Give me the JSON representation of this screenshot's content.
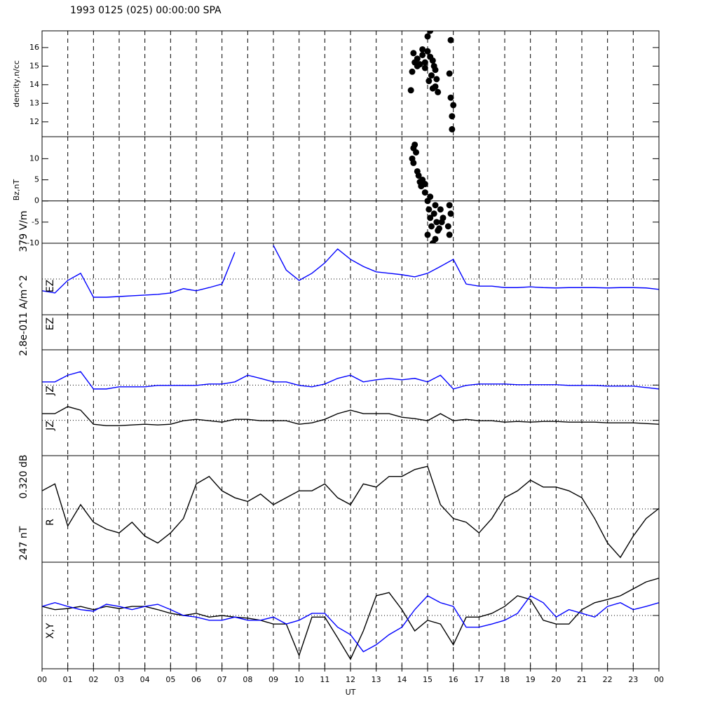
{
  "title": "1993 0125 (025) 00:00:00 SPA",
  "xaxis": {
    "label": "UT",
    "xlim": [
      0,
      24
    ],
    "xticks": [
      {
        "value": 0,
        "label": "00"
      },
      {
        "value": 1,
        "label": "01"
      },
      {
        "value": 2,
        "label": "02"
      },
      {
        "value": 3,
        "label": "03"
      },
      {
        "value": 4,
        "label": "04"
      },
      {
        "value": 5,
        "label": "05"
      },
      {
        "value": 6,
        "label": "06"
      },
      {
        "value": 7,
        "label": "07"
      },
      {
        "value": 8,
        "label": "08"
      },
      {
        "value": 9,
        "label": "09"
      },
      10,
      11,
      12,
      13,
      14,
      15,
      16,
      17,
      18,
      19,
      20,
      21,
      22,
      23,
      {
        "value": 24,
        "label": "00"
      }
    ]
  },
  "chart_data": [
    {
      "type": "scatter",
      "ylabel": "dencity,n/cc",
      "ylim": [
        11.2,
        16.9
      ],
      "yticks": [
        12,
        13,
        14,
        15,
        16
      ],
      "color": "#000000",
      "x": [
        14.5,
        14.4,
        14.35,
        14.6,
        14.7,
        14.8,
        14.9,
        15.0,
        15.1,
        15.0,
        15.05,
        15.15,
        15.2,
        15.25,
        15.3,
        15.35,
        15.4,
        14.8,
        15.1,
        15.9,
        15.85,
        15.9,
        16.0,
        15.95,
        15.95,
        14.6,
        14.9,
        15.2,
        15.3,
        14.45
      ],
      "values": [
        15.2,
        14.7,
        13.7,
        15.4,
        15.1,
        15.6,
        15.2,
        16.6,
        16.9,
        15.8,
        14.2,
        14.5,
        13.8,
        15.0,
        14.8,
        14.3,
        13.6,
        15.9,
        15.5,
        16.4,
        14.6,
        13.3,
        12.9,
        12.3,
        11.6,
        15.0,
        14.9,
        15.3,
        13.9,
        15.7
      ]
    },
    {
      "type": "scatter",
      "ylabel": "Bz,nT",
      "ylim": [
        -10,
        15.2
      ],
      "yticks": [
        -10,
        -5,
        0,
        5,
        10
      ],
      "zero_line": true,
      "color": "#000000",
      "x": [
        14.45,
        14.5,
        14.55,
        14.4,
        14.45,
        14.6,
        14.65,
        14.7,
        14.75,
        14.8,
        14.9,
        15.0,
        15.05,
        15.1,
        15.15,
        15.0,
        15.2,
        15.25,
        15.3,
        15.35,
        15.4,
        15.5,
        15.55,
        15.6,
        15.8,
        15.85,
        15.9,
        15.85,
        15.1,
        14.9,
        15.3,
        15.45
      ],
      "values": [
        12.5,
        13.3,
        11.5,
        10,
        9,
        7,
        6,
        4.5,
        3.5,
        5,
        2,
        0,
        -2,
        -4,
        -6,
        -8,
        -10,
        -3,
        -1,
        -5,
        -7,
        -2,
        -5,
        -4,
        -6,
        -8,
        -3,
        -1,
        1,
        4,
        -9,
        -6.5
      ]
    },
    {
      "type": "line",
      "scale_label": "379 V/m",
      "ylim": [
        -1,
        1
      ],
      "ref_lines": [
        0
      ],
      "x": [
        0,
        0.5,
        1,
        1.5,
        2,
        2.5,
        3,
        3.5,
        4,
        4.5,
        5,
        5.5,
        6,
        6.5,
        7,
        7.5,
        8,
        8.5,
        9,
        9.5,
        10,
        10.5,
        11,
        11.5,
        12,
        12.5,
        13,
        13.5,
        14,
        14.5,
        15,
        15.5,
        16,
        16.5,
        17,
        17.5,
        18,
        18.5,
        19,
        19.5,
        20,
        20.5,
        21,
        21.5,
        22,
        22.5,
        23,
        23.5,
        24
      ],
      "series": [
        {
          "name": "EZ",
          "color": "#0000ff",
          "values": [
            -0.33,
            -0.39,
            -0.04,
            0.16,
            -0.51,
            -0.51,
            -0.49,
            -0.47,
            -0.45,
            -0.43,
            -0.39,
            -0.27,
            -0.33,
            -0.24,
            -0.14,
            0.75,
            null,
            null,
            0.94,
            0.25,
            -0.04,
            0.16,
            0.45,
            0.84,
            0.55,
            0.35,
            0.2,
            0.16,
            0.12,
            0.06,
            0.16,
            0.35,
            0.55,
            -0.14,
            -0.2,
            -0.2,
            -0.24,
            -0.24,
            -0.22,
            -0.24,
            -0.25,
            -0.24,
            -0.24,
            -0.24,
            -0.25,
            -0.24,
            -0.24,
            -0.25,
            -0.29
          ]
        }
      ]
    },
    {
      "type": "line",
      "label": "EZ",
      "scale_label": "2.8e-011 A/m^2",
      "ylim": [
        -1,
        1
      ],
      "series": []
    },
    {
      "type": "line",
      "ylim": [
        0,
        3
      ],
      "ref_lines": [
        1,
        2
      ],
      "x": [
        0,
        0.5,
        1,
        1.5,
        2,
        2.5,
        3,
        3.5,
        4,
        4.5,
        5,
        5.5,
        6,
        6.5,
        7,
        7.5,
        8,
        8.5,
        9,
        9.5,
        10,
        10.5,
        11,
        11.5,
        12,
        12.5,
        13,
        13.5,
        14,
        14.5,
        15,
        15.5,
        16,
        16.5,
        17,
        17.5,
        18,
        18.5,
        19,
        19.5,
        20,
        20.5,
        21,
        21.5,
        22,
        22.5,
        23,
        23.5,
        24
      ],
      "series": [
        {
          "name": "JZ",
          "color": "#0000ff",
          "values": [
            2.09,
            2.09,
            2.28,
            2.38,
            1.89,
            1.89,
            1.95,
            1.95,
            1.95,
            1.99,
            1.99,
            1.99,
            1.99,
            2.03,
            2.03,
            2.09,
            2.28,
            2.19,
            2.09,
            2.09,
            1.99,
            1.95,
            2.03,
            2.19,
            2.28,
            2.09,
            2.15,
            2.19,
            2.15,
            2.19,
            2.09,
            2.28,
            1.89,
            1.99,
            2.03,
            2.03,
            2.03,
            2.01,
            2.01,
            2.01,
            2.01,
            1.99,
            1.99,
            1.99,
            1.97,
            1.97,
            1.97,
            1.93,
            1.89
          ]
        },
        {
          "name": "JZ",
          "color": "#000000",
          "values": [
            1.19,
            1.19,
            1.39,
            1.29,
            0.89,
            0.85,
            0.85,
            0.87,
            0.89,
            0.87,
            0.89,
            0.99,
            1.03,
            0.99,
            0.95,
            1.03,
            1.03,
            0.99,
            0.99,
            0.99,
            0.89,
            0.93,
            1.03,
            1.19,
            1.29,
            1.19,
            1.19,
            1.19,
            1.09,
            1.05,
            0.99,
            1.19,
            0.99,
            1.03,
            0.99,
            0.99,
            0.95,
            0.97,
            0.95,
            0.97,
            0.97,
            0.95,
            0.95,
            0.95,
            0.93,
            0.93,
            0.93,
            0.91,
            0.89
          ]
        }
      ]
    },
    {
      "type": "line",
      "label": "R",
      "scale_label": "0.320 dB",
      "ylim": [
        -1,
        1
      ],
      "ref_lines": [
        0
      ],
      "x": [
        0,
        0.5,
        1,
        1.5,
        2,
        2.5,
        3,
        3.5,
        4,
        4.5,
        5,
        5.5,
        6,
        6.5,
        7,
        7.5,
        8,
        8.5,
        9,
        9.5,
        10,
        10.5,
        11,
        11.5,
        12,
        12.5,
        13,
        13.5,
        14,
        14.5,
        15,
        15.5,
        16,
        16.5,
        17,
        17.5,
        18,
        18.5,
        19,
        19.5,
        20,
        20.5,
        21,
        21.5,
        22,
        22.5,
        23,
        23.5,
        24
      ],
      "series": [
        {
          "color": "#000000",
          "values": [
            0.34,
            0.47,
            -0.32,
            0.08,
            -0.25,
            -0.38,
            -0.45,
            -0.25,
            -0.51,
            -0.64,
            -0.45,
            -0.18,
            0.47,
            0.61,
            0.34,
            0.21,
            0.14,
            0.28,
            0.08,
            0.21,
            0.34,
            0.34,
            0.47,
            0.21,
            0.08,
            0.47,
            0.41,
            0.61,
            0.61,
            0.74,
            0.8,
            0.08,
            -0.18,
            -0.25,
            -0.45,
            -0.18,
            0.21,
            0.34,
            0.54,
            0.41,
            0.41,
            0.34,
            0.21,
            -0.18,
            -0.64,
            -0.91,
            -0.51,
            -0.18,
            0.01
          ]
        }
      ]
    },
    {
      "type": "line",
      "label": "X,Y",
      "scale_label": "247 nT",
      "ylim": [
        -1,
        1
      ],
      "ref_lines": [
        0
      ],
      "x": [
        0,
        0.5,
        1,
        1.5,
        2,
        2.5,
        3,
        3.5,
        4,
        4.5,
        5,
        5.5,
        6,
        6.5,
        7,
        7.5,
        8,
        8.5,
        9,
        9.5,
        10,
        10.5,
        11,
        11.5,
        12,
        12.5,
        13,
        13.5,
        14,
        14.5,
        15,
        15.5,
        16,
        16.5,
        17,
        17.5,
        18,
        18.5,
        19,
        19.5,
        20,
        20.5,
        21,
        21.5,
        22,
        22.5,
        23,
        23.5,
        24
      ],
      "series": [
        {
          "color": "#000000",
          "values": [
            0.17,
            0.11,
            0.13,
            0.17,
            0.11,
            0.17,
            0.13,
            0.17,
            0.17,
            0.11,
            0.04,
            0,
            0.04,
            -0.03,
            0,
            -0.03,
            -0.05,
            -0.09,
            -0.16,
            -0.16,
            -0.75,
            -0.03,
            -0.03,
            -0.42,
            -0.82,
            -0.29,
            0.37,
            0.43,
            0.11,
            -0.29,
            -0.09,
            -0.16,
            -0.55,
            -0.03,
            -0.03,
            0.04,
            0.17,
            0.37,
            0.3,
            -0.09,
            -0.16,
            -0.16,
            0.11,
            0.24,
            0.3,
            0.37,
            0.5,
            0.63,
            0.7
          ]
        },
        {
          "color": "#0000ff",
          "values": [
            0.17,
            0.24,
            0.17,
            0.11,
            0.08,
            0.21,
            0.17,
            0.11,
            0.17,
            0.21,
            0.11,
            0,
            -0.03,
            -0.09,
            -0.09,
            -0.03,
            -0.09,
            -0.09,
            -0.03,
            -0.16,
            -0.09,
            0.04,
            0.04,
            -0.22,
            -0.36,
            -0.68,
            -0.55,
            -0.36,
            -0.22,
            0.11,
            0.37,
            0.24,
            0.17,
            -0.22,
            -0.22,
            -0.16,
            -0.09,
            0.04,
            0.37,
            0.24,
            -0.03,
            0.11,
            0.04,
            -0.03,
            0.17,
            0.24,
            0.11,
            0.17,
            0.24
          ]
        }
      ]
    }
  ]
}
